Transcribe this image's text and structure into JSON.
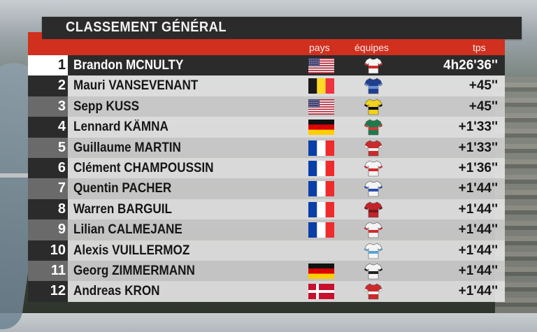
{
  "title": "CLASSEMENT GÉNÉRAL",
  "headers": {
    "pays": "pays",
    "equipes": "équipes",
    "tps": "tps"
  },
  "colors": {
    "accent_red": "#d1301f",
    "dark": "#2b2b2b"
  },
  "rows": [
    {
      "rank": "1",
      "name": "Brandon MCNULTY",
      "flag": "usa",
      "jersey": "white-red",
      "time": "4h26'36''"
    },
    {
      "rank": "2",
      "name": "Mauri VANSEVENANT",
      "flag": "belgium",
      "jersey": "blue",
      "time": "+45''"
    },
    {
      "rank": "3",
      "name": "Sepp KUSS",
      "flag": "usa",
      "jersey": "yellow-black",
      "time": "+45''"
    },
    {
      "rank": "4",
      "name": "Lennard KÄMNA",
      "flag": "germany",
      "jersey": "green",
      "time": "+1'33''"
    },
    {
      "rank": "5",
      "name": "Guillaume MARTIN",
      "flag": "france",
      "jersey": "red-white",
      "time": "+1'33''"
    },
    {
      "rank": "6",
      "name": "Clément CHAMPOUSSIN",
      "flag": "france",
      "jersey": "white-red",
      "time": "+1'36''"
    },
    {
      "rank": "7",
      "name": "Quentin PACHER",
      "flag": "france",
      "jersey": "white-blue",
      "time": "+1'44''"
    },
    {
      "rank": "8",
      "name": "Warren BARGUIL",
      "flag": "france",
      "jersey": "red",
      "time": "+1'44''"
    },
    {
      "rank": "9",
      "name": "Lilian CALMEJANE",
      "flag": "france",
      "jersey": "white-red",
      "time": "+1'44''"
    },
    {
      "rank": "10",
      "name": "Alexis VUILLERMOZ",
      "flag": "none",
      "jersey": "white-multi",
      "time": "+1'44''"
    },
    {
      "rank": "11",
      "name": "Georg ZIMMERMANN",
      "flag": "germany",
      "jersey": "white-black",
      "time": "+1'44''"
    },
    {
      "rank": "12",
      "name": "Andreas KRON",
      "flag": "denmark",
      "jersey": "red-white",
      "time": "+1'44''"
    }
  ]
}
